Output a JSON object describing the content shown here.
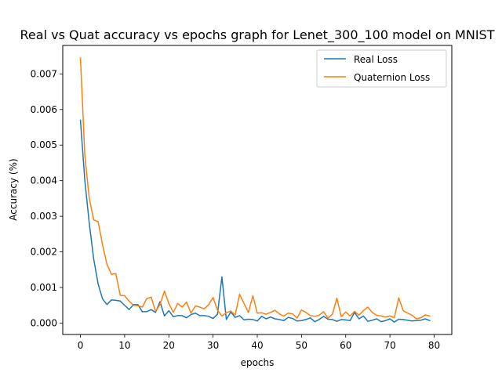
{
  "chart_data": {
    "type": "line",
    "title": "Real vs Quat accuracy vs epochs graph for Lenet_300_100 model on MNIST",
    "xlabel": "epochs",
    "ylabel": "Accuracy (%)",
    "xlim": [
      -4,
      84
    ],
    "ylim": [
      -0.00032,
      0.0078
    ],
    "xticks": [
      0,
      10,
      20,
      30,
      40,
      50,
      60,
      70,
      80
    ],
    "yticks": [
      0.0,
      0.001,
      0.002,
      0.003,
      0.004,
      0.005,
      0.006,
      0.007
    ],
    "ytick_labels": [
      "0.000",
      "0.001",
      "0.002",
      "0.003",
      "0.004",
      "0.005",
      "0.006",
      "0.007"
    ],
    "grid": false,
    "legend_position": "top-right",
    "series": [
      {
        "name": "Real Loss",
        "color": "#1f77b4",
        "x": [
          0,
          1,
          2,
          3,
          4,
          5,
          6,
          7,
          8,
          9,
          10,
          11,
          12,
          13,
          14,
          15,
          16,
          17,
          18,
          19,
          20,
          21,
          22,
          23,
          24,
          25,
          26,
          27,
          28,
          29,
          30,
          31,
          32,
          33,
          34,
          35,
          36,
          37,
          38,
          39,
          40,
          41,
          42,
          43,
          44,
          45,
          46,
          47,
          48,
          49,
          50,
          51,
          52,
          53,
          54,
          55,
          56,
          57,
          58,
          59,
          60,
          61,
          62,
          63,
          64,
          65,
          66,
          67,
          68,
          69,
          70,
          71,
          72,
          73,
          74,
          75,
          76,
          77,
          78,
          79
        ],
        "values": [
          0.0057,
          0.004,
          0.0028,
          0.0018,
          0.0011,
          0.00068,
          0.00052,
          0.00065,
          0.00064,
          0.00062,
          0.0005,
          0.00038,
          0.00052,
          0.00052,
          0.00032,
          0.00032,
          0.00038,
          0.0003,
          0.0006,
          0.0002,
          0.00035,
          0.00018,
          0.00021,
          0.00021,
          0.00015,
          0.00024,
          0.00028,
          0.00021,
          0.00021,
          0.00019,
          0.00013,
          0.00025,
          0.0013,
          0.0001,
          0.00031,
          0.00016,
          0.00021,
          9e-05,
          0.00011,
          0.0001,
          6e-05,
          0.00019,
          0.00012,
          0.00017,
          0.00012,
          0.0001,
          7e-05,
          0.00016,
          0.00013,
          6e-05,
          7e-05,
          0.0001,
          0.00015,
          4e-05,
          0.0001,
          0.00019,
          0.00011,
          0.0001,
          5e-05,
          0.0001,
          9e-05,
          7e-05,
          0.0003,
          0.00012,
          0.0002,
          5e-05,
          8e-05,
          0.00012,
          4e-05,
          7e-05,
          0.00012,
          3e-05,
          0.00011,
          0.0001,
          8e-05,
          6e-05,
          7e-05,
          8e-05,
          0.00012,
          7e-05
        ]
      },
      {
        "name": "Quaternion Loss",
        "color": "#ff7f0e",
        "x": [
          0,
          1,
          2,
          3,
          4,
          5,
          6,
          7,
          8,
          9,
          10,
          11,
          12,
          13,
          14,
          15,
          16,
          17,
          18,
          19,
          20,
          21,
          22,
          23,
          24,
          25,
          26,
          27,
          28,
          29,
          30,
          31,
          32,
          33,
          34,
          35,
          36,
          37,
          38,
          39,
          40,
          41,
          42,
          43,
          44,
          45,
          46,
          47,
          48,
          49,
          50,
          51,
          52,
          53,
          54,
          55,
          56,
          57,
          58,
          59,
          60,
          61,
          62,
          63,
          64,
          65,
          66,
          67,
          68,
          69,
          70,
          71,
          72,
          73,
          74,
          75,
          76,
          77,
          78,
          79
        ],
        "values": [
          0.00745,
          0.0047,
          0.0035,
          0.0029,
          0.00285,
          0.0022,
          0.00165,
          0.00137,
          0.00139,
          0.00078,
          0.00077,
          0.00062,
          0.0005,
          0.00049,
          0.00045,
          0.00069,
          0.00073,
          0.00033,
          0.00052,
          0.0009,
          0.00055,
          0.0003,
          0.00055,
          0.00045,
          0.00059,
          0.00028,
          0.00048,
          0.00045,
          0.0004,
          0.00052,
          0.00072,
          0.00036,
          0.0002,
          0.00029,
          0.00034,
          0.00023,
          0.00081,
          0.00055,
          0.0003,
          0.00077,
          0.00028,
          0.00029,
          0.00025,
          0.0003,
          0.00036,
          0.00026,
          0.0002,
          0.00028,
          0.00026,
          0.00014,
          0.00037,
          0.0003,
          0.00021,
          0.00019,
          0.00022,
          0.00032,
          0.00014,
          0.00025,
          0.0007,
          0.00018,
          0.00031,
          0.0002,
          0.00033,
          0.00022,
          0.00035,
          0.00045,
          0.0003,
          0.00022,
          0.0002,
          0.00017,
          0.0002,
          0.00015,
          0.00071,
          0.00035,
          0.00028,
          0.00022,
          0.00012,
          0.00015,
          0.00023,
          0.0002
        ]
      }
    ]
  }
}
